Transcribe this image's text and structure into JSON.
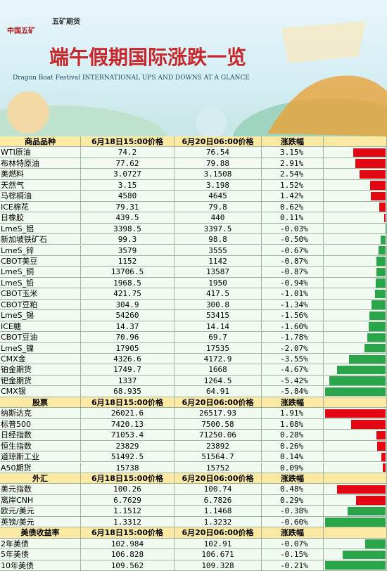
{
  "header": {
    "logo": "中国五矿",
    "brand": "五矿期货",
    "title": "端午假期国际涨跌一览",
    "subtitle": "Dragon Boat Festival INTERNATIONAL UPS AND DOWNS AT A GLANCE"
  },
  "sections": [
    {
      "header": [
        "商品品种",
        "6月18日15:00价格",
        "6月20日06:00价格",
        "涨跌幅"
      ],
      "rows": [
        {
          "name": "WTI原油",
          "p1": "74.2",
          "p2": "76.54",
          "change": 3.15,
          "change_label": "3.15%"
        },
        {
          "name": "布林特原油",
          "p1": "77.62",
          "p2": "79.88",
          "change": 2.91,
          "change_label": "2.91%"
        },
        {
          "name": "美燃料",
          "p1": "3.0727",
          "p2": "3.1508",
          "change": 2.54,
          "change_label": "2.54%"
        },
        {
          "name": "天然气",
          "p1": "3.15",
          "p2": "3.198",
          "change": 1.52,
          "change_label": "1.52%"
        },
        {
          "name": "马棕榈油",
          "p1": "4580",
          "p2": "4645",
          "change": 1.42,
          "change_label": "1.42%"
        },
        {
          "name": "ICE棉花",
          "p1": "79.31",
          "p2": "79.8",
          "change": 0.62,
          "change_label": "0.62%"
        },
        {
          "name": "日橡胶",
          "p1": "439.5",
          "p2": "440",
          "change": 0.11,
          "change_label": "0.11%"
        },
        {
          "name": "LmeS_铝",
          "p1": "3398.5",
          "p2": "3397.5",
          "change": -0.03,
          "change_label": "-0.03%"
        },
        {
          "name": "新加坡铁矿石",
          "p1": "99.3",
          "p2": "98.8",
          "change": -0.5,
          "change_label": "-0.50%"
        },
        {
          "name": "LmeS_锌",
          "p1": "3579",
          "p2": "3555",
          "change": -0.67,
          "change_label": "-0.67%"
        },
        {
          "name": "CBOT美豆",
          "p1": "1152",
          "p2": "1142",
          "change": -0.87,
          "change_label": "-0.87%"
        },
        {
          "name": "LmeS_铜",
          "p1": "13706.5",
          "p2": "13587",
          "change": -0.87,
          "change_label": "-0.87%"
        },
        {
          "name": "LmeS_铅",
          "p1": "1968.5",
          "p2": "1950",
          "change": -0.94,
          "change_label": "-0.94%"
        },
        {
          "name": "CBOT玉米",
          "p1": "421.75",
          "p2": "417.5",
          "change": -1.01,
          "change_label": "-1.01%"
        },
        {
          "name": "CBOT豆粕",
          "p1": "304.9",
          "p2": "300.8",
          "change": -1.34,
          "change_label": "-1.34%"
        },
        {
          "name": "LmeS_锡",
          "p1": "54260",
          "p2": "53415",
          "change": -1.56,
          "change_label": "-1.56%"
        },
        {
          "name": "ICE糖",
          "p1": "14.37",
          "p2": "14.14",
          "change": -1.6,
          "change_label": "-1.60%"
        },
        {
          "name": "CBOT豆油",
          "p1": "70.96",
          "p2": "69.7",
          "change": -1.78,
          "change_label": "-1.78%"
        },
        {
          "name": "LmeS_镍",
          "p1": "17905",
          "p2": "17535",
          "change": -2.07,
          "change_label": "-2.07%"
        },
        {
          "name": "CMX金",
          "p1": "4326.6",
          "p2": "4172.9",
          "change": -3.55,
          "change_label": "-3.55%"
        },
        {
          "name": "铂金期货",
          "p1": "1749.7",
          "p2": "1668",
          "change": -4.67,
          "change_label": "-4.67%"
        },
        {
          "name": "钯金期货",
          "p1": "1337",
          "p2": "1264.5",
          "change": -5.42,
          "change_label": "-5.42%"
        },
        {
          "name": "CMX银",
          "p1": "68.935",
          "p2": "64.91",
          "change": -5.84,
          "change_label": "-5.84%"
        }
      ]
    },
    {
      "header": [
        "股票",
        "6月18日15:00价格",
        "6月20日06:00价格",
        "涨跌幅"
      ],
      "rows": [
        {
          "name": "纳斯达克",
          "p1": "26021.6",
          "p2": "26517.93",
          "change": 1.91,
          "change_label": "1.91%"
        },
        {
          "name": "标普500",
          "p1": "7420.13",
          "p2": "7500.58",
          "change": 1.08,
          "change_label": "1.08%"
        },
        {
          "name": "日经指数",
          "p1": "71053.4",
          "p2": "71250.06",
          "change": 0.28,
          "change_label": "0.28%"
        },
        {
          "name": "恒生指数",
          "p1": "23829",
          "p2": "23892",
          "change": 0.26,
          "change_label": "0.26%"
        },
        {
          "name": "道琼斯工业",
          "p1": "51492.5",
          "p2": "51564.7",
          "change": 0.14,
          "change_label": "0.14%"
        },
        {
          "name": "A50期货",
          "p1": "15738",
          "p2": "15752",
          "change": 0.09,
          "change_label": "0.09%"
        }
      ]
    },
    {
      "header": [
        "外汇",
        "6月18日15:00价格",
        "6月20日06:00价格",
        "涨跌幅"
      ],
      "rows": [
        {
          "name": "美元指数",
          "p1": "100.26",
          "p2": "100.74",
          "change": 0.48,
          "change_label": "0.48%"
        },
        {
          "name": "离岸CNH",
          "p1": "6.7629",
          "p2": "6.7826",
          "change": 0.29,
          "change_label": "0.29%"
        },
        {
          "name": "欧元/美元",
          "p1": "1.1512",
          "p2": "1.1468",
          "change": -0.38,
          "change_label": "-0.38%"
        },
        {
          "name": "英镑/美元",
          "p1": "1.3312",
          "p2": "1.3232",
          "change": -0.6,
          "change_label": "-0.60%"
        }
      ]
    },
    {
      "header": [
        "美债收益率",
        "6月18日15:00价格",
        "6月20日06:00价格",
        "涨跌幅"
      ],
      "rows": [
        {
          "name": "2年美债",
          "p1": "102.984",
          "p2": "102.91",
          "change": -0.07,
          "change_label": "-0.07%"
        },
        {
          "name": "5年美债",
          "p1": "106.828",
          "p2": "106.671",
          "change": -0.15,
          "change_label": "-0.15%"
        },
        {
          "name": "10年美债",
          "p1": "109.562",
          "p2": "109.328",
          "change": -0.21,
          "change_label": "-0.21%"
        }
      ]
    }
  ]
}
